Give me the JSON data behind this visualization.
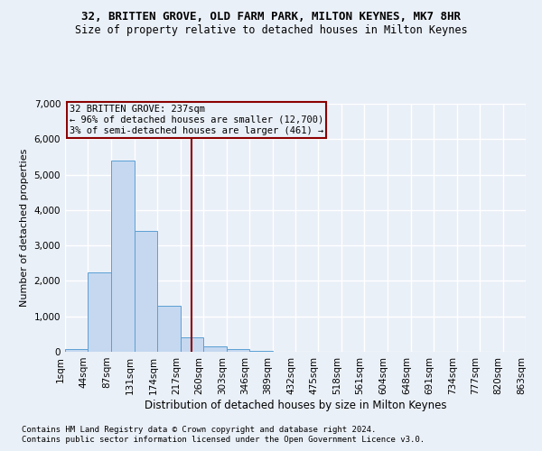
{
  "title_line1": "32, BRITTEN GROVE, OLD FARM PARK, MILTON KEYNES, MK7 8HR",
  "title_line2": "Size of property relative to detached houses in Milton Keynes",
  "xlabel": "Distribution of detached houses by size in Milton Keynes",
  "ylabel": "Number of detached properties",
  "footer_line1": "Contains HM Land Registry data © Crown copyright and database right 2024.",
  "footer_line2": "Contains public sector information licensed under the Open Government Licence v3.0.",
  "annotation_line1": "32 BRITTEN GROVE: 237sqm",
  "annotation_line2": "← 96% of detached houses are smaller (12,700)",
  "annotation_line3": "3% of semi-detached houses are larger (461) →",
  "property_size": 237,
  "bin_edges": [
    1,
    44,
    87,
    131,
    174,
    217,
    260,
    303,
    346,
    389,
    432,
    475,
    518,
    561,
    604,
    648,
    691,
    734,
    777,
    820,
    863
  ],
  "bar_heights": [
    75,
    2250,
    5400,
    3400,
    1300,
    400,
    150,
    75,
    30,
    10,
    5,
    2,
    0,
    0,
    0,
    0,
    0,
    0,
    0,
    0
  ],
  "bar_color": "#c5d8f0",
  "bar_edge_color": "#5a9fd4",
  "vline_color": "#8b0000",
  "vline_x": 237,
  "annotation_box_color": "#8b0000",
  "background_color": "#eaf0f8",
  "plot_bg_color": "#eaf0f8",
  "grid_color": "#ffffff",
  "ylim": [
    0,
    7000
  ],
  "yticks": [
    0,
    1000,
    2000,
    3000,
    4000,
    5000,
    6000,
    7000
  ],
  "title1_fontsize": 9,
  "title2_fontsize": 8.5,
  "ylabel_fontsize": 8,
  "xlabel_fontsize": 8.5,
  "tick_fontsize": 7.5,
  "footer_fontsize": 6.5,
  "annot_fontsize": 7.5
}
